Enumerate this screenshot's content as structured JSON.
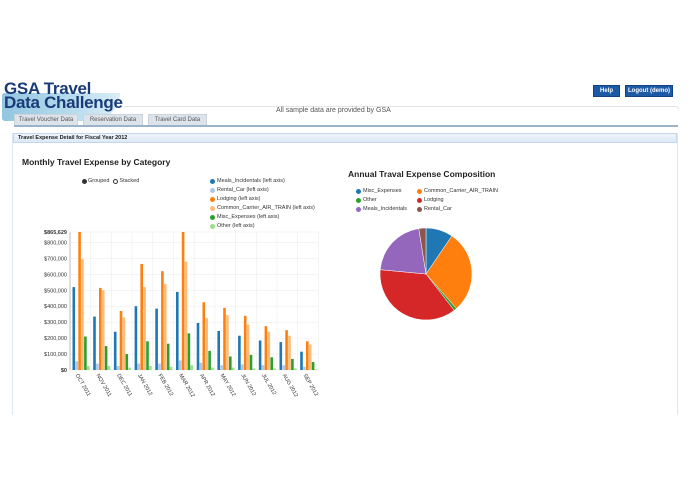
{
  "header": {
    "logo_line1": "GSA Travel",
    "logo_line2": "Data Challenge",
    "notice": "All sample data are provided by GSA",
    "help_label": "Help",
    "logout_label": "Logout (demo)"
  },
  "tabs": [
    {
      "label": "Travel Voucher Data"
    },
    {
      "label": "Reservation Data"
    },
    {
      "label": "Travel Card Data"
    }
  ],
  "panel": {
    "title": "Travel Expense Detail for Fiscal Year 2012"
  },
  "bar_chart": {
    "title": "Monthly Travel Expense by Category",
    "mode_options": [
      {
        "label": "Grouped",
        "selected": true
      },
      {
        "label": "Stacked",
        "selected": false
      }
    ],
    "legend": [
      {
        "label": "Meals_Incidentals (left axis)",
        "color": "#1f77b4"
      },
      {
        "label": "Rental_Car (left axis)",
        "color": "#aec7e8"
      },
      {
        "label": "Lodging (left axis)",
        "color": "#ff7f0e"
      },
      {
        "label": "Common_Carrier_AIR_TRAIN (left axis)",
        "color": "#ffbb78"
      },
      {
        "label": "Misc_Expenses (left axis)",
        "color": "#2ca02c"
      },
      {
        "label": "Other (left axis)",
        "color": "#98df8a"
      }
    ],
    "y_ticks": [
      "$0",
      "$100,000",
      "$200,000",
      "$300,000",
      "$400,000",
      "$500,000",
      "$600,000",
      "$700,000",
      "$800,000",
      "$865,629"
    ]
  },
  "pie_chart": {
    "title": "Annual Traval Expense Composition",
    "legend": [
      {
        "label": "Misc_Expenses",
        "color": "#1f77b4"
      },
      {
        "label": "Common_Carrier_AIR_TRAIN",
        "color": "#ff7f0e"
      },
      {
        "label": "Other",
        "color": "#2ca02c"
      },
      {
        "label": "Lodging",
        "color": "#d62728"
      },
      {
        "label": "Meals_Incidentals",
        "color": "#9467bd"
      },
      {
        "label": "Rental_Car",
        "color": "#8c564b"
      }
    ]
  },
  "chart_data": [
    {
      "type": "bar",
      "title": "Monthly Travel Expense by Category",
      "xlabel": "",
      "ylabel": "",
      "ylim": [
        0,
        865629
      ],
      "grid": true,
      "legend_position": "top-right",
      "categories": [
        "OCT 2011",
        "NOV 2011",
        "DEC 2011",
        "JAN 2012",
        "FEB 2012",
        "MAR 2012",
        "APR 2012",
        "MAY 2012",
        "JUN 2012",
        "JUL 2012",
        "AUG 2012",
        "SEP 2012"
      ],
      "series": [
        {
          "name": "Meals_Incidentals",
          "values": [
            520000,
            335000,
            240000,
            400000,
            385000,
            490000,
            295000,
            245000,
            215000,
            185000,
            175000,
            115000
          ]
        },
        {
          "name": "Rental_Car",
          "values": [
            55000,
            40000,
            25000,
            40000,
            40000,
            60000,
            45000,
            30000,
            35000,
            30000,
            30000,
            20000
          ]
        },
        {
          "name": "Lodging",
          "values": [
            865629,
            515000,
            370000,
            665000,
            620000,
            865629,
            425000,
            390000,
            340000,
            275000,
            250000,
            180000
          ]
        },
        {
          "name": "Common_Carrier_AIR_TRAIN",
          "values": [
            695000,
            500000,
            330000,
            520000,
            540000,
            680000,
            325000,
            345000,
            285000,
            240000,
            215000,
            160000
          ]
        },
        {
          "name": "Misc_Expenses",
          "values": [
            210000,
            150000,
            100000,
            180000,
            165000,
            230000,
            120000,
            85000,
            95000,
            80000,
            70000,
            50000
          ]
        },
        {
          "name": "Other",
          "values": [
            25000,
            25000,
            15000,
            25000,
            20000,
            30000,
            15000,
            15000,
            10000,
            10000,
            10000,
            5000
          ]
        }
      ]
    },
    {
      "type": "pie",
      "title": "Annual Traval Expense Composition",
      "legend_position": "top",
      "categories": [
        "Misc_Expenses",
        "Common_Carrier_AIR_TRAIN",
        "Other",
        "Lodging",
        "Meals_Incidentals",
        "Rental_Car"
      ],
      "values": [
        9.5,
        29,
        1,
        37,
        21,
        2.5
      ]
    }
  ]
}
